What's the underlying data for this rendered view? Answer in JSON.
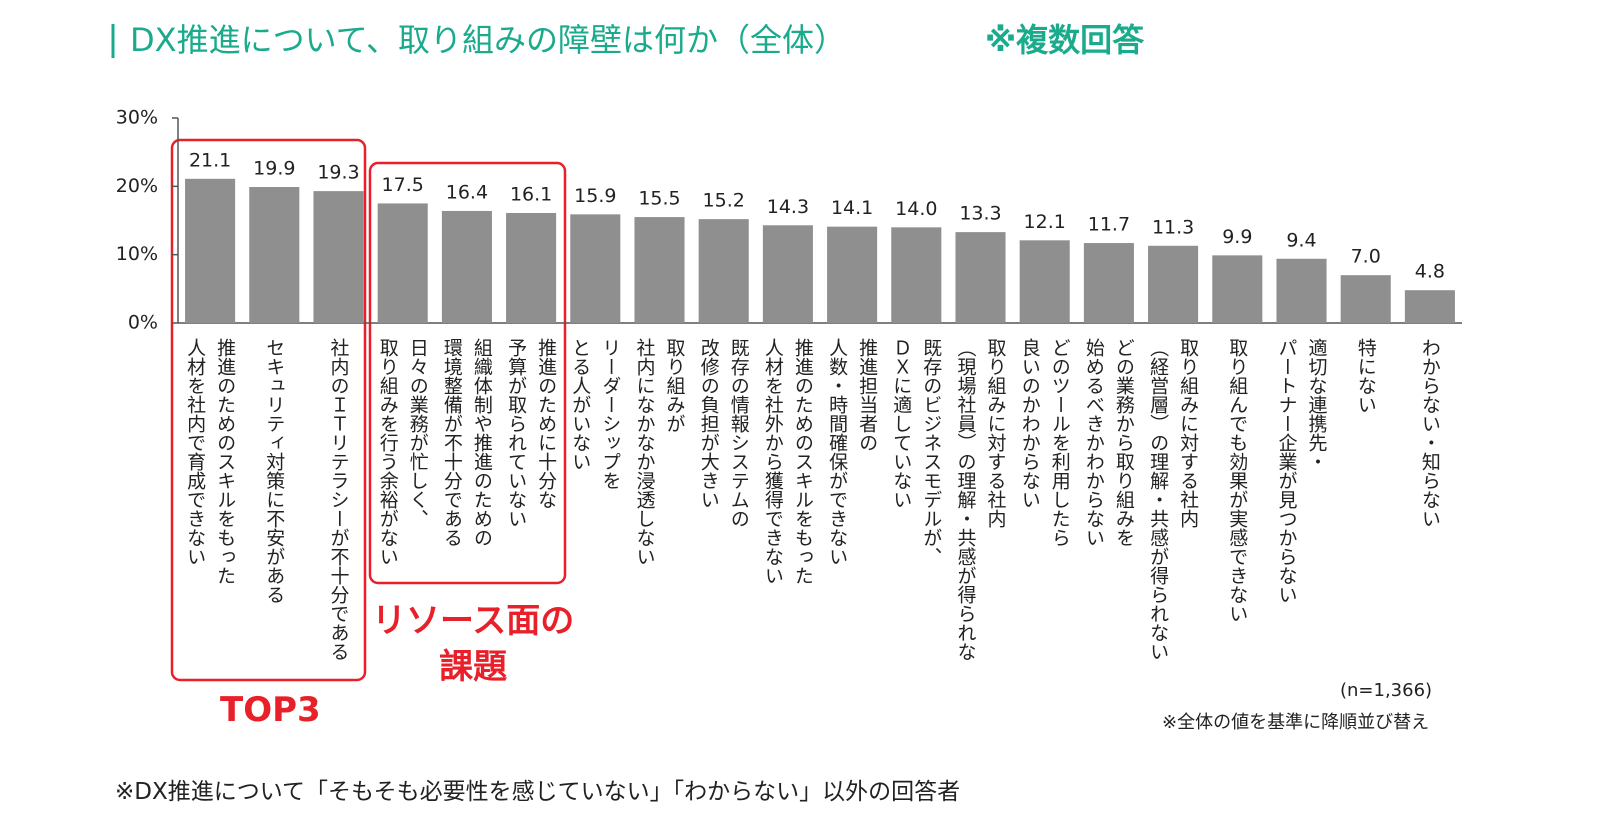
{
  "chart_data": {
    "type": "bar",
    "title": "DX推進について、取り組みの障壁は何か（全体）",
    "subtitle": "※複数回答",
    "categories": [
      "推進のためのスキルをもった\n人材を社内で育成できない",
      "セキュリティ対策に不安がある",
      "社内のＩＴリテラシーが不十分である",
      "日々の業務が忙しく、\n取り組みを行う余裕がない",
      "組織体制や推進のための\n環境整備が不十分である",
      "推進のために十分な\n予算が取られていない",
      "リーダーシップを\nとる人がいない",
      "取り組みが\n社内になかなか浸透しない",
      "既存の情報システムの\n改修の負担が大きい",
      "推進のためのスキルをもった\n人材を社外から獲得できない",
      "推進担当者の\n人数・時間確保ができない",
      "既存のビジネスモデルが、\nＤＸに適していない",
      "取り組みに対する社内\n（現場社員）の理解・共感が得られな",
      "どのツールを利用したら\n良いのかわからない",
      "どの業務から取り組みを\n始めるべきかわからない",
      "取り組みに対する社内\n（経営層）の理解・共感が得られない",
      "取り組んでも効果が実感できない",
      "適切な連携先・\nパートナー企業が見つからない",
      "特にない",
      "わからない・知らない"
    ],
    "values": [
      21.1,
      19.9,
      19.3,
      17.5,
      16.4,
      16.1,
      15.9,
      15.5,
      15.2,
      14.3,
      14.1,
      14.0,
      13.3,
      12.1,
      11.7,
      11.3,
      9.9,
      9.4,
      7.0,
      4.8
    ],
    "value_labels": [
      "21.1",
      "19.9",
      "19.3",
      "17.5",
      "16.4",
      "16.1",
      "15.9",
      "15.5",
      "15.2",
      "14.3",
      "14.1",
      "14.0",
      "13.3",
      "12.1",
      "11.7",
      "11.3",
      "9.9",
      "9.4",
      "7.0",
      "4.8"
    ],
    "color": "#8f8f8f",
    "ylim": [
      0,
      30
    ],
    "yticks": [
      {
        "value": 0,
        "label": "0%"
      },
      {
        "value": 10,
        "label": "10%"
      },
      {
        "value": 20,
        "label": "20%"
      },
      {
        "value": 30,
        "label": "30%"
      }
    ],
    "annotations": [
      "TOP3",
      "リソース面の\n課題",
      "(n=1,366)",
      "※全体の値を基準に降順並び替え"
    ],
    "footnote": "※DX推進について「そもそも必要性を感じていない」「わからない」以外の回答者"
  }
}
